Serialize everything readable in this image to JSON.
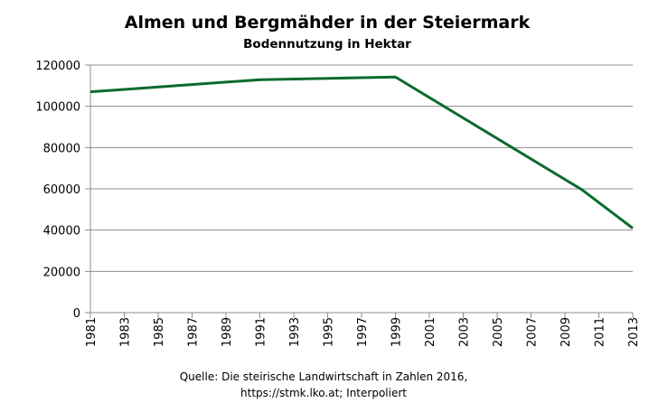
{
  "chart_data": {
    "type": "line",
    "title": "Almen und Bergmähder in der Steiermark",
    "subtitle": "Bodennutzung in Hektar",
    "source_line1": "Quelle: Die steirische Landwirtschaft in Zahlen 2016,",
    "source_line2": "https://stmk.lko.at; Interpoliert",
    "xlim": [
      1981,
      2013
    ],
    "ylim": [
      0,
      120000
    ],
    "x_ticks": [
      "1981",
      "1983",
      "1985",
      "1987",
      "1989",
      "1991",
      "1993",
      "1995",
      "1997",
      "1999",
      "2001",
      "2003",
      "2005",
      "2007",
      "2009",
      "2011",
      "2013"
    ],
    "y_ticks": [
      "0",
      "20000",
      "40000",
      "60000",
      "80000",
      "100000",
      "120000"
    ],
    "grid": true,
    "series": [
      {
        "color": "#0b6b2e",
        "x": [
          1981,
          1991,
          1999,
          2010,
          2013
        ],
        "y": [
          107000,
          112900,
          114200,
          59600,
          40900
        ]
      }
    ]
  }
}
